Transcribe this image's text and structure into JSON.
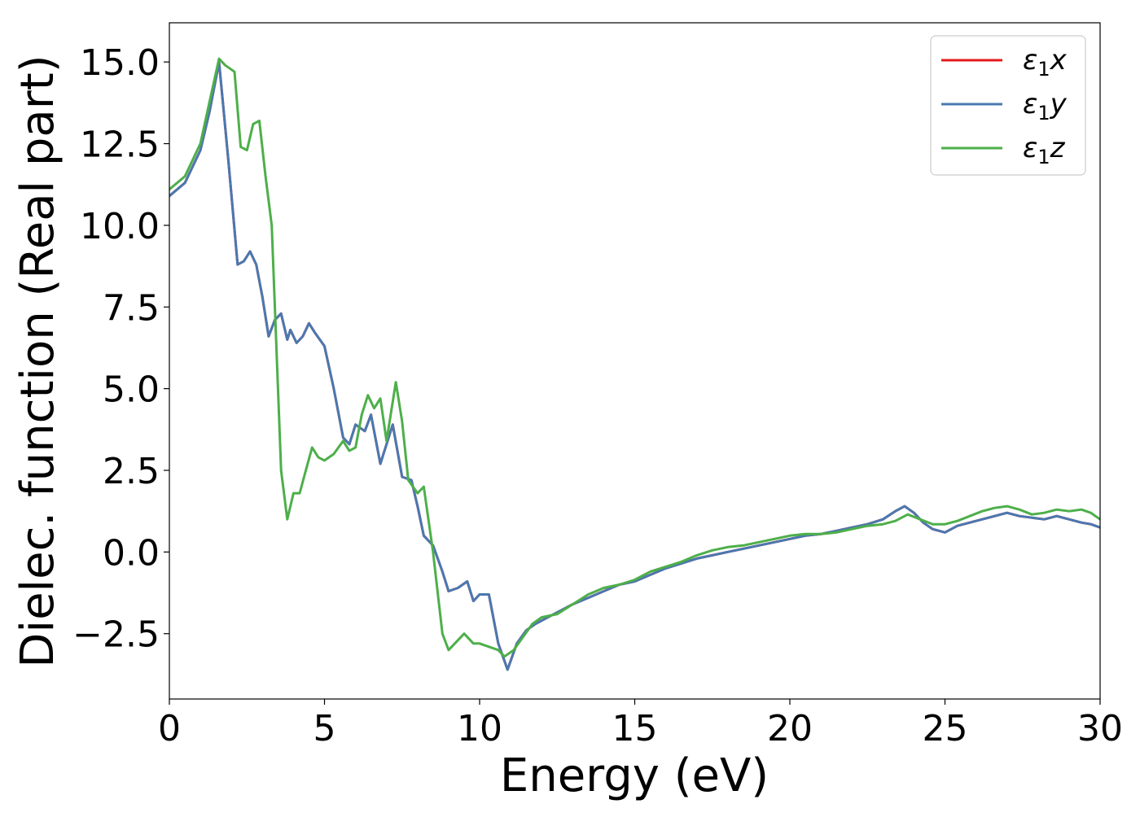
{
  "chart_data": {
    "type": "line",
    "title": "",
    "xlabel": "Energy (eV)",
    "ylabel": "Dielec. function (Real part)",
    "xlim": [
      0,
      30
    ],
    "ylim": [
      -4.5,
      16.2
    ],
    "xticks": [
      0,
      5,
      10,
      15,
      20,
      25,
      30
    ],
    "xtick_labels": [
      "0",
      "5",
      "10",
      "15",
      "20",
      "25",
      "30"
    ],
    "yticks": [
      -2.5,
      0.0,
      2.5,
      5.0,
      7.5,
      10.0,
      12.5,
      15.0
    ],
    "ytick_labels": [
      "−2.5",
      "0.0",
      "2.5",
      "5.0",
      "7.5",
      "10.0",
      "12.5",
      "15.0"
    ],
    "grid": false,
    "legend_position": "top-right",
    "series": [
      {
        "name": "ε₁x",
        "color": "#e41a1c",
        "x": [
          0,
          0.5,
          1.0,
          1.3,
          1.6,
          1.9,
          2.2,
          2.4,
          2.6,
          2.8,
          3.0,
          3.2,
          3.4,
          3.6,
          3.8,
          3.9,
          4.1,
          4.3,
          4.5,
          4.7,
          5.0,
          5.3,
          5.6,
          5.8,
          6.0,
          6.3,
          6.5,
          6.8,
          7.0,
          7.2,
          7.5,
          7.8,
          8.0,
          8.2,
          8.5,
          8.8,
          9.0,
          9.3,
          9.6,
          9.8,
          10.0,
          10.3,
          10.6,
          10.9,
          11.2,
          11.5,
          11.8,
          12.2,
          12.6,
          13.0,
          13.5,
          14.0,
          14.5,
          15.0,
          15.5,
          16.0,
          16.5,
          17.0,
          17.5,
          18.0,
          18.5,
          19.0,
          19.5,
          20.0,
          20.5,
          21.0,
          21.5,
          22.0,
          22.5,
          23.0,
          23.4,
          23.7,
          24.0,
          24.3,
          24.6,
          25.0,
          25.4,
          25.8,
          26.2,
          26.6,
          27.0,
          27.4,
          27.8,
          28.2,
          28.6,
          29.0,
          29.4,
          29.7,
          30.0
        ],
        "y": [
          10.9,
          11.3,
          12.3,
          13.5,
          15.0,
          12.0,
          8.8,
          8.9,
          9.2,
          8.8,
          7.8,
          6.6,
          7.1,
          7.3,
          6.5,
          6.8,
          6.4,
          6.6,
          7.0,
          6.7,
          6.3,
          5.0,
          3.5,
          3.3,
          3.9,
          3.7,
          4.2,
          2.7,
          3.3,
          3.9,
          2.3,
          2.2,
          1.4,
          0.5,
          0.2,
          -0.6,
          -1.2,
          -1.1,
          -0.9,
          -1.5,
          -1.3,
          -1.3,
          -2.8,
          -3.6,
          -2.8,
          -2.4,
          -2.2,
          -2.0,
          -1.8,
          -1.6,
          -1.4,
          -1.2,
          -1.0,
          -0.9,
          -0.7,
          -0.5,
          -0.35,
          -0.2,
          -0.1,
          0.0,
          0.1,
          0.2,
          0.3,
          0.4,
          0.5,
          0.55,
          0.65,
          0.75,
          0.85,
          1.0,
          1.25,
          1.4,
          1.2,
          0.9,
          0.7,
          0.6,
          0.8,
          0.9,
          1.0,
          1.1,
          1.2,
          1.1,
          1.05,
          1.0,
          1.1,
          1.0,
          0.9,
          0.85,
          0.75
        ]
      },
      {
        "name": "ε₁y",
        "color": "#4a78b0",
        "x": [
          0,
          0.5,
          1.0,
          1.3,
          1.6,
          1.9,
          2.2,
          2.4,
          2.6,
          2.8,
          3.0,
          3.2,
          3.4,
          3.6,
          3.8,
          3.9,
          4.1,
          4.3,
          4.5,
          4.7,
          5.0,
          5.3,
          5.6,
          5.8,
          6.0,
          6.3,
          6.5,
          6.8,
          7.0,
          7.2,
          7.5,
          7.8,
          8.0,
          8.2,
          8.5,
          8.8,
          9.0,
          9.3,
          9.6,
          9.8,
          10.0,
          10.3,
          10.6,
          10.9,
          11.2,
          11.5,
          11.8,
          12.2,
          12.6,
          13.0,
          13.5,
          14.0,
          14.5,
          15.0,
          15.5,
          16.0,
          16.5,
          17.0,
          17.5,
          18.0,
          18.5,
          19.0,
          19.5,
          20.0,
          20.5,
          21.0,
          21.5,
          22.0,
          22.5,
          23.0,
          23.4,
          23.7,
          24.0,
          24.3,
          24.6,
          25.0,
          25.4,
          25.8,
          26.2,
          26.6,
          27.0,
          27.4,
          27.8,
          28.2,
          28.6,
          29.0,
          29.4,
          29.7,
          30.0
        ],
        "y": [
          10.9,
          11.3,
          12.3,
          13.5,
          15.0,
          12.0,
          8.8,
          8.9,
          9.2,
          8.8,
          7.8,
          6.6,
          7.1,
          7.3,
          6.5,
          6.8,
          6.4,
          6.6,
          7.0,
          6.7,
          6.3,
          5.0,
          3.5,
          3.3,
          3.9,
          3.7,
          4.2,
          2.7,
          3.3,
          3.9,
          2.3,
          2.2,
          1.4,
          0.5,
          0.2,
          -0.6,
          -1.2,
          -1.1,
          -0.9,
          -1.5,
          -1.3,
          -1.3,
          -2.8,
          -3.6,
          -2.8,
          -2.4,
          -2.2,
          -2.0,
          -1.8,
          -1.6,
          -1.4,
          -1.2,
          -1.0,
          -0.9,
          -0.7,
          -0.5,
          -0.35,
          -0.2,
          -0.1,
          0.0,
          0.1,
          0.2,
          0.3,
          0.4,
          0.5,
          0.55,
          0.65,
          0.75,
          0.85,
          1.0,
          1.25,
          1.4,
          1.2,
          0.9,
          0.7,
          0.6,
          0.8,
          0.9,
          1.0,
          1.1,
          1.2,
          1.1,
          1.05,
          1.0,
          1.1,
          1.0,
          0.9,
          0.85,
          0.75
        ]
      },
      {
        "name": "ε₁z",
        "color": "#4daf4a",
        "x": [
          0,
          0.5,
          1.0,
          1.3,
          1.6,
          1.8,
          2.1,
          2.3,
          2.5,
          2.7,
          2.9,
          3.1,
          3.3,
          3.5,
          3.6,
          3.8,
          4.0,
          4.2,
          4.4,
          4.6,
          4.8,
          5.0,
          5.3,
          5.6,
          5.8,
          6.0,
          6.2,
          6.4,
          6.6,
          6.8,
          7.0,
          7.3,
          7.5,
          7.7,
          8.0,
          8.2,
          8.5,
          8.8,
          9.0,
          9.2,
          9.5,
          9.8,
          10.0,
          10.3,
          10.6,
          10.8,
          11.1,
          11.4,
          11.7,
          12.0,
          12.5,
          13.0,
          13.5,
          14.0,
          14.5,
          15.0,
          15.5,
          16.0,
          16.5,
          17.0,
          17.5,
          18.0,
          18.5,
          19.0,
          19.5,
          20.0,
          20.5,
          21.0,
          21.5,
          22.0,
          22.5,
          23.0,
          23.4,
          23.8,
          24.2,
          24.6,
          25.0,
          25.4,
          25.8,
          26.2,
          26.6,
          27.0,
          27.4,
          27.8,
          28.2,
          28.6,
          29.0,
          29.4,
          29.7,
          30.0
        ],
        "y": [
          11.1,
          11.5,
          12.5,
          13.8,
          15.1,
          14.9,
          14.7,
          12.4,
          12.3,
          13.1,
          13.2,
          11.5,
          10.0,
          5.0,
          2.5,
          1.0,
          1.8,
          1.8,
          2.5,
          3.2,
          2.9,
          2.8,
          3.0,
          3.4,
          3.1,
          3.2,
          4.2,
          4.8,
          4.4,
          4.7,
          3.4,
          5.2,
          4.0,
          2.2,
          1.8,
          2.0,
          0.0,
          -2.5,
          -3.0,
          -2.8,
          -2.5,
          -2.8,
          -2.8,
          -2.9,
          -3.0,
          -3.2,
          -3.0,
          -2.6,
          -2.2,
          -2.0,
          -1.9,
          -1.6,
          -1.3,
          -1.1,
          -1.0,
          -0.85,
          -0.6,
          -0.45,
          -0.3,
          -0.1,
          0.05,
          0.15,
          0.2,
          0.3,
          0.4,
          0.5,
          0.55,
          0.55,
          0.6,
          0.7,
          0.8,
          0.85,
          0.95,
          1.15,
          1.0,
          0.85,
          0.85,
          0.95,
          1.1,
          1.25,
          1.35,
          1.4,
          1.3,
          1.15,
          1.2,
          1.3,
          1.25,
          1.3,
          1.2,
          1.0
        ]
      }
    ]
  }
}
